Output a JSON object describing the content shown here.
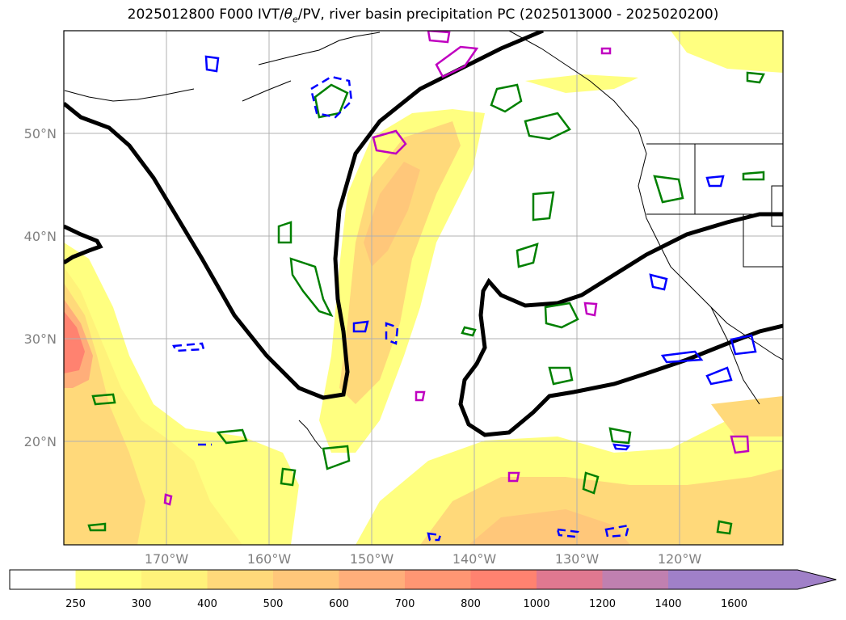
{
  "title": {
    "prefix": "2025012800 F000 IVT/",
    "theta": "θ",
    "theta_sub": "e",
    "suffix": "/PV, river basin precipitation PC (2025013000 - 2025020200)"
  },
  "map": {
    "lon_range": [
      -180,
      -110
    ],
    "lat_range": [
      10,
      60
    ],
    "lat_ticks": [
      {
        "value": 50,
        "label": "50°N"
      },
      {
        "value": 40,
        "label": "40°N"
      },
      {
        "value": 30,
        "label": "30°N"
      },
      {
        "value": 20,
        "label": "20°N"
      }
    ],
    "lon_ticks": [
      {
        "value": -170,
        "label": "170°W"
      },
      {
        "value": -160,
        "label": "160°W"
      },
      {
        "value": -150,
        "label": "150°W"
      },
      {
        "value": -140,
        "label": "140°W"
      },
      {
        "value": -130,
        "label": "130°W"
      },
      {
        "value": -120,
        "label": "120°W"
      }
    ],
    "grid": true,
    "layers": [
      "IVT shading",
      "theta-e contours (green)",
      "PV contours (blue, magenta)",
      "black boundary contour",
      "coastlines and borders"
    ]
  },
  "colorbar": {
    "levels": [
      "250",
      "300",
      "400",
      "500",
      "600",
      "700",
      "800",
      "1000",
      "1200",
      "1400",
      "1600"
    ],
    "colors": [
      "#ffffff",
      "#ffff80",
      "#fff27a",
      "#ffd97a",
      "#ffc77a",
      "#ffae7a",
      "#ff9673",
      "#ff8270",
      "#e07890",
      "#c080b0",
      "#a080c8"
    ],
    "extend": "max"
  }
}
